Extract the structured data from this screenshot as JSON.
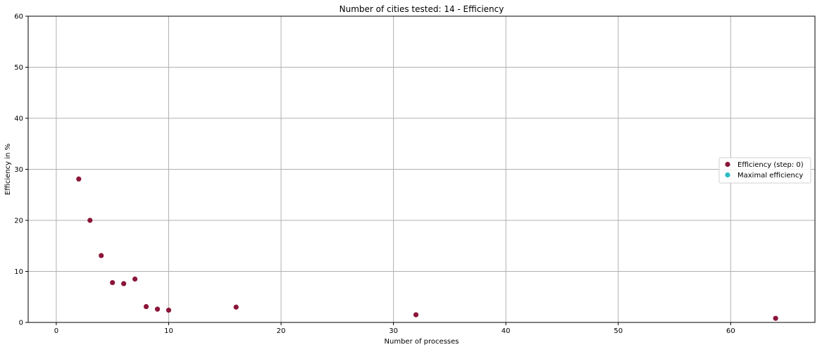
{
  "chart_data": {
    "type": "scatter",
    "title": "Number of cities tested: 14 - Efficiency",
    "xlabel": "Number of processes",
    "ylabel": "Efficiency in %",
    "xlim": [
      -2.5,
      67.5
    ],
    "ylim": [
      0,
      60
    ],
    "xticks": [
      0,
      10,
      20,
      30,
      40,
      50,
      60
    ],
    "yticks": [
      0,
      10,
      20,
      30,
      40,
      50,
      60
    ],
    "grid": true,
    "legend_position": "center-right",
    "series": [
      {
        "name": "Efficiency (step: 0)",
        "color": "#8b1538",
        "points": [
          {
            "x": 2,
            "y": 28.1
          },
          {
            "x": 3,
            "y": 20.0
          },
          {
            "x": 4,
            "y": 13.1
          },
          {
            "x": 5,
            "y": 7.8
          },
          {
            "x": 6,
            "y": 7.6
          },
          {
            "x": 7,
            "y": 8.5
          },
          {
            "x": 8,
            "y": 3.1
          },
          {
            "x": 9,
            "y": 2.6
          },
          {
            "x": 10,
            "y": 2.4
          },
          {
            "x": 16,
            "y": 3.0
          },
          {
            "x": 32,
            "y": 1.5
          },
          {
            "x": 64,
            "y": 0.8
          }
        ]
      },
      {
        "name": "Maximal efficiency",
        "color": "#2cbcc4",
        "points": []
      }
    ]
  }
}
